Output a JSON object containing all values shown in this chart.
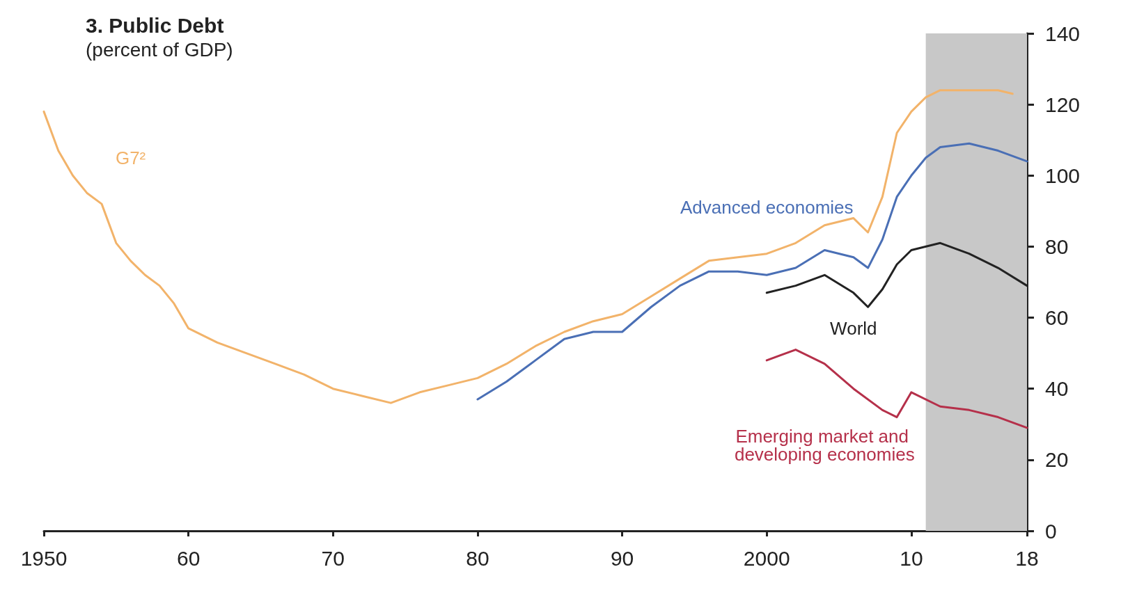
{
  "chart_data": {
    "type": "line",
    "title": "3. Public Debt",
    "subtitle": "(percent of GDP)",
    "xlim": [
      1950,
      2018
    ],
    "xticks": [
      1950,
      {
        "value": 1960,
        "label": "60"
      },
      {
        "value": 1970,
        "label": "70"
      },
      {
        "value": 1980,
        "label": "80"
      },
      {
        "value": 1990,
        "label": "90"
      },
      2000,
      {
        "value": 2010,
        "label": "10"
      },
      {
        "value": 2018,
        "label": "18"
      }
    ],
    "ylim": [
      0,
      140
    ],
    "yticks": [
      0,
      20,
      40,
      60,
      80,
      100,
      120,
      140
    ],
    "grid": false,
    "legend": false,
    "marker": "none",
    "line_style": "solid",
    "bands": [
      {
        "axis": "x",
        "from": 2011,
        "to": 2018,
        "color": "#c8c8c8"
      }
    ],
    "series": [
      {
        "name": "G7²",
        "color": "#f2b36a",
        "x": [
          1950,
          1951,
          1952,
          1953,
          1954,
          1955,
          1956,
          1957,
          1958,
          1959,
          1960,
          1962,
          1964,
          1966,
          1968,
          1970,
          1972,
          1974,
          1976,
          1978,
          1980,
          1982,
          1984,
          1986,
          1988,
          1990,
          1992,
          1994,
          1996,
          1998,
          2000,
          2002,
          2004,
          2006,
          2007,
          2008,
          2009,
          2010,
          2011,
          2012,
          2014,
          2016,
          2017
        ],
        "values": [
          118,
          107,
          100,
          95,
          92,
          81,
          76,
          72,
          69,
          64,
          57,
          53,
          50,
          47,
          44,
          40,
          38,
          36,
          39,
          41,
          43,
          47,
          52,
          56,
          59,
          61,
          66,
          71,
          76,
          77,
          78,
          81,
          86,
          88,
          84,
          94,
          112,
          118,
          122,
          124,
          124,
          124,
          123
        ]
      },
      {
        "name": "Advanced economies",
        "color": "#4a6fb5",
        "x": [
          1980,
          1982,
          1984,
          1986,
          1988,
          1990,
          1992,
          1994,
          1996,
          1998,
          2000,
          2002,
          2004,
          2006,
          2007,
          2008,
          2009,
          2010,
          2011,
          2012,
          2014,
          2016,
          2018
        ],
        "values": [
          37,
          42,
          48,
          54,
          56,
          56,
          63,
          69,
          73,
          73,
          72,
          74,
          79,
          77,
          74,
          82,
          94,
          100,
          105,
          108,
          109,
          107,
          104
        ]
      },
      {
        "name": "World",
        "color": "#222222",
        "x": [
          2000,
          2002,
          2004,
          2006,
          2007,
          2008,
          2009,
          2010,
          2012,
          2014,
          2016,
          2018
        ],
        "values": [
          67,
          69,
          72,
          67,
          63,
          68,
          75,
          79,
          81,
          78,
          74,
          69
        ]
      },
      {
        "name": "Emerging market and developing economies",
        "color": "#b5304a",
        "x": [
          2000,
          2002,
          2004,
          2006,
          2008,
          2009,
          2010,
          2012,
          2014,
          2016,
          2018
        ],
        "values": [
          48,
          51,
          47,
          40,
          34,
          32,
          39,
          35,
          34,
          32,
          29
        ]
      }
    ]
  }
}
